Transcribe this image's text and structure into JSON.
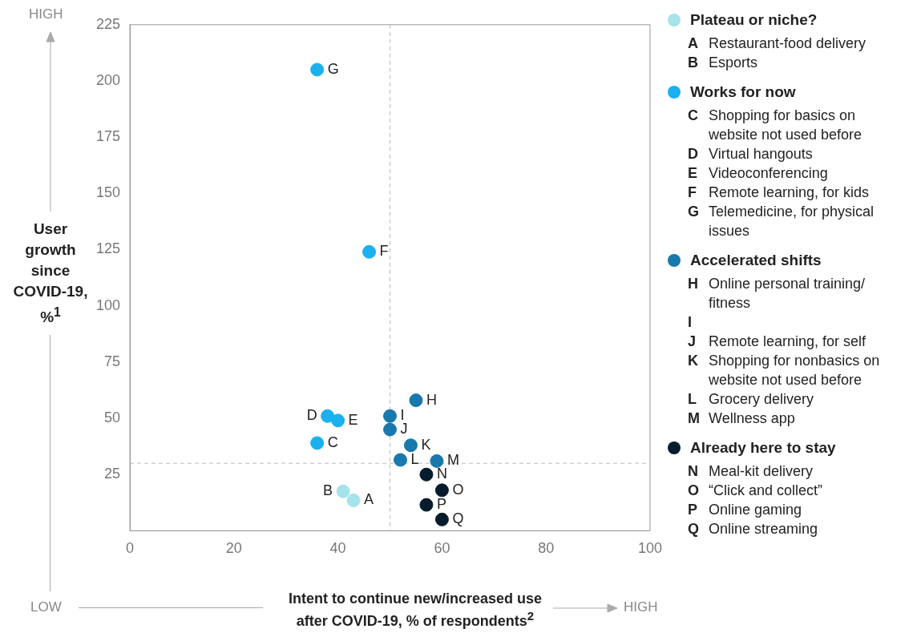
{
  "chart_data": {
    "type": "scatter",
    "xlabel": "Intent to continue new/increased use after COVID-19, % of respondents$^{2}$",
    "ylabel": "User growth since COVID-19, %$^{1}$",
    "xlim": [
      0,
      100
    ],
    "xticks": [
      0,
      20,
      40,
      60,
      80,
      100
    ],
    "ylim": [
      0,
      225
    ],
    "yticks": [
      25,
      50,
      75,
      100,
      125,
      150,
      175,
      200,
      225
    ],
    "grid": false,
    "legend": "right",
    "marker": "circle",
    "series": [
      {
        "name": "Plateau or niche?",
        "color": "#a6e3ec",
        "x": [
          43,
          41
        ],
        "values": [
          13.5,
          17.5
        ],
        "value_labels": [
          "A",
          "B"
        ]
      },
      {
        "name": "Works for now",
        "color": "#1bb0ee",
        "x": [
          36,
          38,
          40,
          46,
          36
        ],
        "values": [
          39,
          51,
          49,
          124,
          205
        ],
        "value_labels": [
          "C",
          "D",
          "E",
          "F",
          "G"
        ]
      },
      {
        "name": "Accelerated shifts",
        "color": "#1978ac",
        "x": [
          55,
          50,
          50,
          54,
          52,
          59
        ],
        "values": [
          58,
          51,
          45,
          38,
          31.5,
          31
        ],
        "value_labels": [
          "H",
          "I",
          "J",
          "K",
          "L",
          "M"
        ]
      },
      {
        "name": "Already here to stay",
        "color": "#051c2c",
        "x": [
          57,
          60,
          57,
          60
        ],
        "values": [
          25,
          18,
          11.5,
          5
        ],
        "value_labels": [
          "N",
          "O",
          "P",
          "Q"
        ]
      }
    ],
    "ref_lines": [
      {
        "axis": "x",
        "value": 50,
        "color": "#bbbbbb",
        "line_style": "dashed"
      },
      {
        "axis": "y",
        "value": 30,
        "color": "#bbbbbb",
        "line_style": "dashed"
      }
    ],
    "annotations": [
      "A Restaurant-food delivery",
      "B Esports",
      "C Shopping for basics on website not used before",
      "D Virtual hangouts",
      "E Videoconferencing",
      "F Remote learning, for kids",
      "G Telemedicine, for physical issues",
      "H Online personal training/ fitness",
      "I",
      "J Remote learning, for self",
      "K Shopping for nonbasics on website not used before",
      "L Grocery delivery",
      "M Wellness app",
      "N Meal-kit delivery",
      "O “Click and collect”",
      "P Online gaming",
      "Q Online streaming",
      "HIGH",
      "LOW",
      "HIGH"
    ]
  }
}
